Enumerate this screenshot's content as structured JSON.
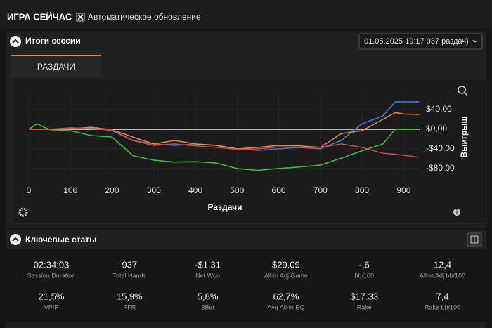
{
  "header": {
    "title": "ИГРА СЕЙЧАС",
    "auto_refresh": "Автоматическое обновление"
  },
  "session": {
    "title": "Итоги сессии",
    "dropdown": "01.05.2025 19:17 937 раздач)",
    "tab": "РАЗДАЧИ"
  },
  "chart_data": {
    "type": "line",
    "xlabel": "Раздачи",
    "ylabel": "Выигрыш",
    "x": [
      0,
      20,
      50,
      100,
      150,
      200,
      250,
      300,
      350,
      400,
      450,
      500,
      550,
      600,
      650,
      700,
      750,
      800,
      850,
      880,
      900,
      937
    ],
    "series": [
      {
        "color": "#3f7fd4",
        "values": [
          0,
          0,
          0,
          1,
          3,
          -3,
          -23,
          -30,
          -33,
          -30,
          -33,
          -40,
          -43,
          -40,
          -37,
          -40,
          -23,
          11,
          27,
          56,
          56,
          56
        ]
      },
      {
        "color": "#e8883a",
        "values": [
          0,
          0,
          0,
          1,
          4,
          -1,
          -16,
          -30,
          -23,
          -30,
          -33,
          -40,
          -37,
          -33,
          -34,
          -37,
          -9,
          -3,
          20,
          34,
          31,
          30
        ]
      },
      {
        "color": "#3fbf3f",
        "values": [
          0,
          11,
          -1,
          -3,
          -13,
          -16,
          -54,
          -63,
          -67,
          -66,
          -69,
          -80,
          -84,
          -80,
          -77,
          -73,
          -59,
          -44,
          -30,
          0,
          0,
          0
        ]
      },
      {
        "color": "#d44a4a",
        "values": [
          0,
          0,
          0,
          3,
          1,
          -1,
          -23,
          -33,
          -30,
          -34,
          -37,
          -41,
          -40,
          -36,
          -37,
          -37,
          -30,
          -37,
          -49,
          -51,
          -53,
          -57
        ]
      }
    ],
    "xlim": [
      0,
      940
    ],
    "xticks": [
      0,
      100,
      200,
      300,
      400,
      500,
      600,
      700,
      800,
      900
    ],
    "ylim": [
      -106,
      73
    ],
    "yticks": [
      {
        "value": 40,
        "label": "$40,00"
      },
      {
        "value": 0,
        "label": "$0,00"
      },
      {
        "value": -40,
        "label": "-$40,00"
      },
      {
        "value": -80,
        "label": "-$80,00"
      }
    ]
  },
  "stats": {
    "title": "Ключевые статы",
    "items": [
      {
        "value": "02:34:03",
        "label": "Session Duration"
      },
      {
        "value": "937",
        "label": "Total Hands"
      },
      {
        "value": "-$1.31",
        "label": "Net Won"
      },
      {
        "value": "$29.09",
        "label": "All-in Adj Game"
      },
      {
        "value": "-,6",
        "label": "bb/100"
      },
      {
        "value": "12,4",
        "label": "All-in Adj bb/100"
      },
      {
        "value": "21,5%",
        "label": "VPIP"
      },
      {
        "value": "15,9%",
        "label": "PFR"
      },
      {
        "value": "5,8%",
        "label": "3Bet"
      },
      {
        "value": "62,7%",
        "label": "Avg All-in EQ"
      },
      {
        "value": "$17.33",
        "label": "Rake"
      },
      {
        "value": "7,4",
        "label": "Rake bb/100"
      }
    ]
  }
}
